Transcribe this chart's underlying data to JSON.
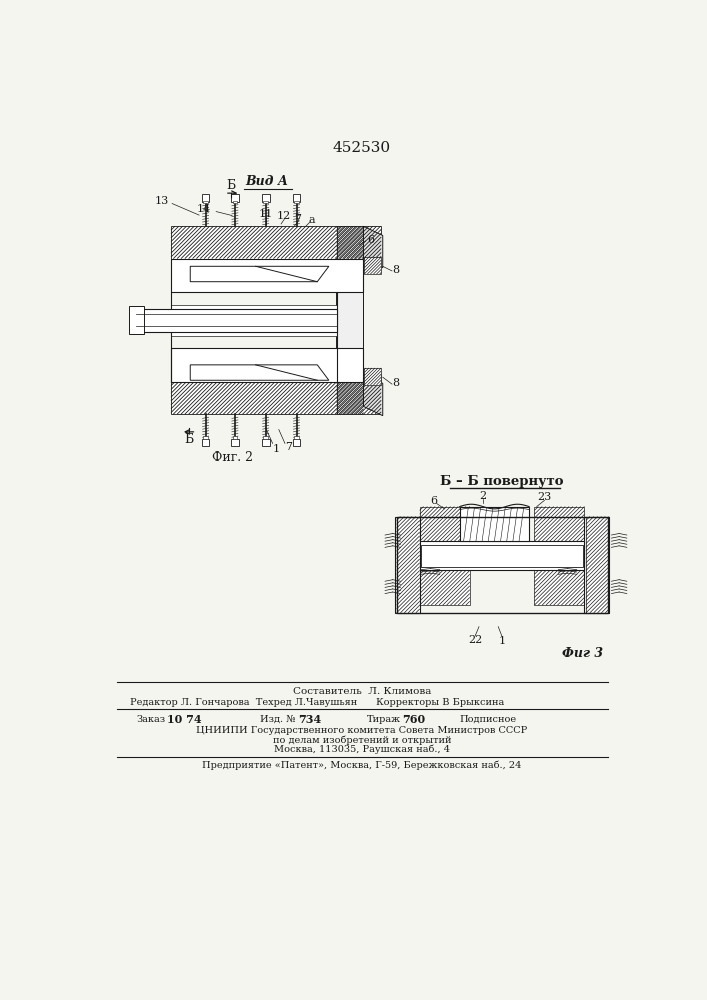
{
  "patent_number": "452530",
  "fig2_label": "Фиг. 2",
  "fig3_label": "Фиг 3",
  "view_a_label": "Вид А",
  "bb_label": "Б – Б повернуто",
  "composer": "Составитель  Л. Климова",
  "editor_line": "Редактор Л. Гончарова  Техред Л.Чавушьян      Корректоры В Брыксина",
  "order_line_z": "Заказ",
  "order_line_zv": "10 74",
  "order_line_i": "Изд. №",
  "order_line_iv": "734",
  "order_line_t": "Тираж",
  "order_line_tv": "760",
  "order_line_p": "Подписное",
  "org_line1": "ЦНИИПИ Государственного комитета Совета Министров СССР",
  "org_line2": "по делам изобретений и открытий",
  "org_line3": "Москва, 113035, Раушская наб., 4",
  "company_line": "Предприятие «Патент», Москва, Г-59, Бережковская наб., 24",
  "bg_color": "#f5f5f0",
  "line_color": "#1a1a1a"
}
